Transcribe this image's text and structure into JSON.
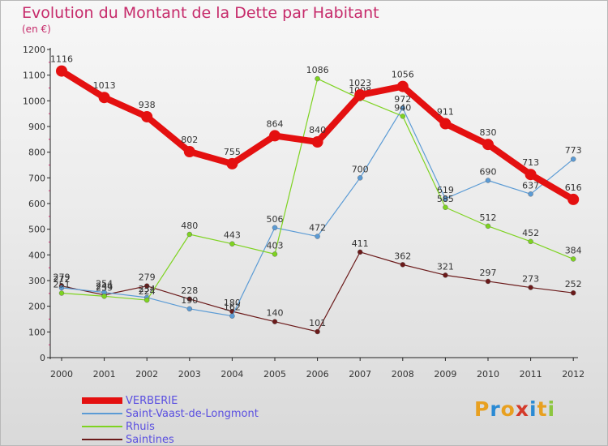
{
  "header": {
    "title": "Evolution du Montant de la Dette par Habitant",
    "subtitle": "(en €)"
  },
  "logo": {
    "letters": [
      "P",
      "r",
      "o",
      "x",
      "i",
      "t",
      "i"
    ],
    "colors": [
      "#e8a020",
      "#2a8ad4",
      "#e8a020",
      "#d43a2a",
      "#2a8ad4",
      "#e8a020",
      "#8cc63f"
    ]
  },
  "chart_data": {
    "type": "line",
    "title": "Evolution du Montant de la Dette par Habitant",
    "ylabel": "(en €)",
    "xlabel": "",
    "ylim": [
      0,
      1200
    ],
    "yticks": [
      0,
      100,
      200,
      300,
      400,
      500,
      600,
      700,
      800,
      900,
      1000,
      1100,
      1200
    ],
    "categories": [
      "2000",
      "2001",
      "2002",
      "2003",
      "2004",
      "2005",
      "2006",
      "2007",
      "2008",
      "2009",
      "2010",
      "2011",
      "2012"
    ],
    "series": [
      {
        "name": "VERBERIE",
        "color": "#e41010",
        "values": [
          1116,
          1013,
          938,
          802,
          755,
          864,
          840,
          1023,
          1056,
          911,
          830,
          713,
          616
        ]
      },
      {
        "name": "Saint-Vaast-de-Longmont",
        "color": "#5b9bd5",
        "values": [
          272,
          254,
          234,
          190,
          162,
          506,
          472,
          700,
          972,
          619,
          690,
          637,
          773
        ]
      },
      {
        "name": "Rhuis",
        "color": "#7ed321",
        "values": [
          251,
          239,
          224,
          480,
          443,
          403,
          1086,
          1008,
          940,
          585,
          512,
          452,
          384
        ]
      },
      {
        "name": "Saintines",
        "color": "#6b1a1a",
        "values": [
          279,
          244,
          279,
          228,
          180,
          140,
          101,
          411,
          362,
          321,
          297,
          273,
          252
        ]
      }
    ],
    "legend_position": "bottom-left",
    "grid": false
  }
}
